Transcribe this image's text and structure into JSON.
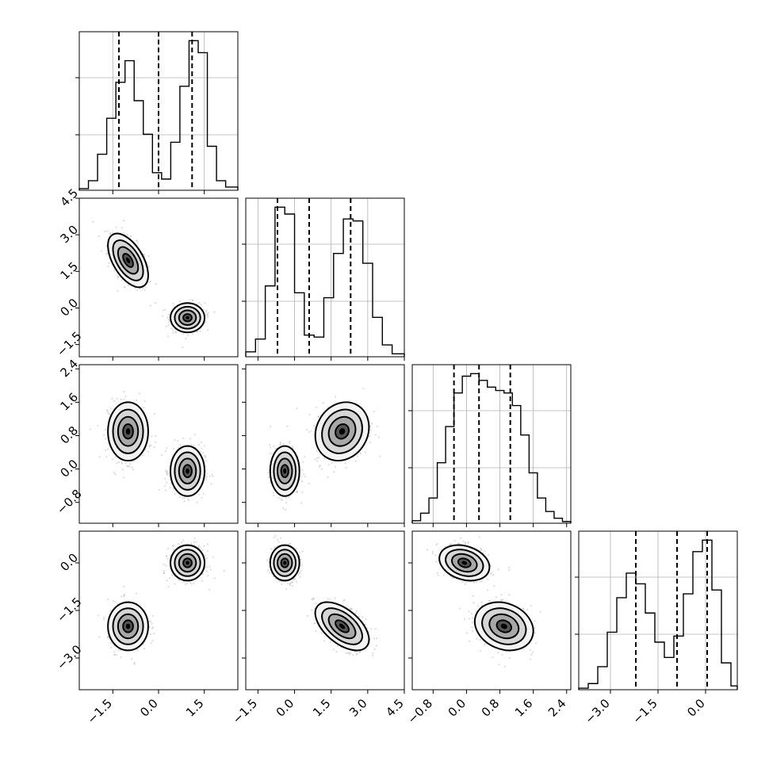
{
  "chart_data": {
    "type": "corner",
    "grid": true,
    "variables": [
      {
        "range": [
          -2.6,
          2.6
        ],
        "ticks": [
          -1.5,
          0.0,
          1.5
        ],
        "tick_labels": [
          "−1.5",
          "0.0",
          "1.5"
        ],
        "quantiles": [
          -1.3,
          0.0,
          1.1
        ],
        "hist_bins": [
          -2.6,
          -2.3,
          -2.0,
          -1.7,
          -1.4,
          -1.1,
          -0.8,
          -0.5,
          -0.2,
          0.1,
          0.4,
          0.7,
          1.0,
          1.3,
          1.6,
          1.9,
          2.2,
          2.6
        ],
        "hist_counts": [
          0.02,
          0.12,
          0.45,
          0.9,
          1.35,
          1.62,
          1.12,
          0.7,
          0.22,
          0.14,
          0.6,
          1.3,
          1.87,
          1.72,
          0.55,
          0.12,
          0.04
        ]
      },
      {
        "range": [
          -2.0,
          4.5
        ],
        "ticks": [
          -1.5,
          0.0,
          1.5,
          3.0,
          4.5
        ],
        "tick_labels": [
          "−1.5",
          "0.0",
          "1.5",
          "3.0",
          "4.5"
        ],
        "quantiles": [
          -0.7,
          0.6,
          2.3
        ],
        "hist_bins": [
          -2.0,
          -1.6,
          -1.2,
          -0.8,
          -0.4,
          0.0,
          0.4,
          0.8,
          1.2,
          1.6,
          2.0,
          2.4,
          2.8,
          3.2,
          3.6,
          4.0,
          4.5
        ],
        "hist_counts": [
          0.05,
          0.18,
          0.72,
          1.52,
          1.45,
          0.65,
          0.22,
          0.2,
          0.6,
          1.05,
          1.4,
          1.38,
          0.95,
          0.4,
          0.12,
          0.03
        ]
      },
      {
        "range": [
          -1.3,
          2.5
        ],
        "ticks": [
          -0.8,
          0.0,
          0.8,
          1.6,
          2.4
        ],
        "tick_labels": [
          "−0.8",
          "0.0",
          "0.8",
          "1.6",
          "2.4"
        ],
        "quantiles": [
          -0.3,
          0.3,
          1.05
        ],
        "hist_bins": [
          -1.3,
          -1.1,
          -0.9,
          -0.7,
          -0.5,
          -0.3,
          -0.1,
          0.1,
          0.3,
          0.5,
          0.7,
          0.9,
          1.1,
          1.3,
          1.5,
          1.7,
          1.9,
          2.1,
          2.3,
          2.5
        ],
        "hist_counts": [
          0.03,
          0.12,
          0.3,
          0.72,
          1.15,
          1.55,
          1.75,
          1.78,
          1.7,
          1.62,
          1.58,
          1.55,
          1.4,
          1.05,
          0.6,
          0.3,
          0.14,
          0.06,
          0.02
        ]
      },
      {
        "range": [
          -4.0,
          1.0
        ],
        "ticks": [
          -3.0,
          -1.5,
          0.0
        ],
        "tick_labels": [
          "−3.0",
          "−1.5",
          "0.0"
        ],
        "quantiles": [
          -2.2,
          -0.9,
          0.05
        ],
        "hist_bins": [
          -4.0,
          -3.7,
          -3.4,
          -3.1,
          -2.8,
          -2.5,
          -2.2,
          -1.9,
          -1.6,
          -1.3,
          -1.0,
          -0.7,
          -0.4,
          -0.1,
          0.2,
          0.5,
          0.8,
          1.0
        ],
        "hist_counts": [
          0.02,
          0.08,
          0.3,
          0.75,
          1.2,
          1.52,
          1.38,
          1.0,
          0.62,
          0.42,
          0.7,
          1.25,
          1.8,
          1.95,
          1.3,
          0.35,
          0.05
        ]
      }
    ],
    "clusters": [
      {
        "weight": 0.5,
        "mean": [
          -1.0,
          1.95,
          0.9,
          -2.0
        ],
        "sd": [
          0.33,
          0.55,
          0.35,
          0.38
        ]
      },
      {
        "weight": 0.5,
        "mean": [
          0.95,
          -0.4,
          -0.05,
          0.0
        ],
        "sd": [
          0.28,
          0.3,
          0.3,
          0.28
        ]
      }
    ]
  }
}
